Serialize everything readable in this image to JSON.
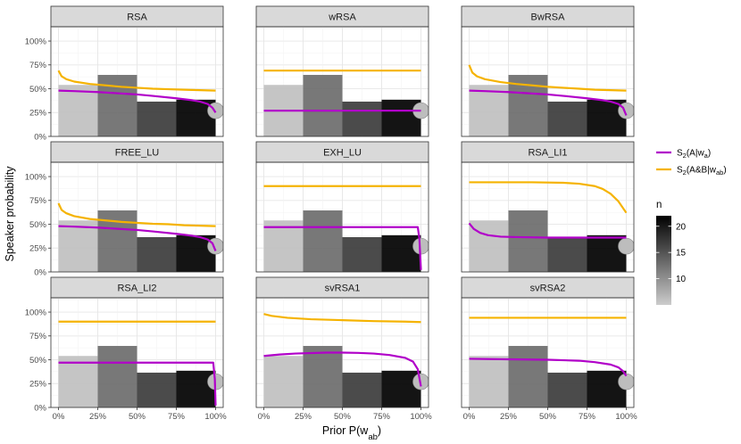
{
  "chart_data": {
    "type": "faceted-line-bar",
    "xlabel": "Prior P(w",
    "xlabel_sub": "ab",
    "xlabel_close": ")",
    "ylabel": "Speaker probability",
    "x_ticks": [
      "0%",
      "25%",
      "50%",
      "75%",
      "100%"
    ],
    "y_ticks": [
      "0%",
      "25%",
      "50%",
      "75%",
      "100%"
    ],
    "ylim": [
      0,
      1.15
    ],
    "xlim": [
      0,
      1
    ],
    "grid": true,
    "legend": {
      "placement": "right",
      "series": [
        {
          "label_main": "S",
          "label_sub": "2",
          "label_rest": "(A|w",
          "label_sub2": "a",
          "label_end": ")",
          "color": "#b100c9"
        },
        {
          "label_main": "S",
          "label_sub": "2",
          "label_rest": "(A&B|w",
          "label_sub2": "ab",
          "label_end": ")",
          "color": "#f5b300"
        }
      ],
      "n_title": "n",
      "n_ticks": [
        10,
        15,
        20
      ],
      "n_range": [
        5,
        22
      ]
    },
    "bars": {
      "bins": [
        [
          0,
          0.25
        ],
        [
          0.25,
          0.5
        ],
        [
          0.5,
          0.75
        ],
        [
          0.75,
          1.0
        ]
      ],
      "values": [
        0.54,
        0.645,
        0.365,
        0.385
      ],
      "n": [
        6,
        13,
        17,
        22
      ]
    },
    "end_point": {
      "x": 1.0,
      "y": 0.27,
      "color": "#bdbdbd"
    },
    "panels": [
      {
        "title": "RSA",
        "series": [
          {
            "name": "S2(A|wa)",
            "x": [
              0,
              0.1,
              0.25,
              0.4,
              0.5,
              0.6,
              0.75,
              0.85,
              0.9,
              0.95,
              0.98,
              1.0
            ],
            "y": [
              0.48,
              0.475,
              0.465,
              0.45,
              0.44,
              0.425,
              0.4,
              0.38,
              0.365,
              0.34,
              0.3,
              0.25
            ]
          },
          {
            "name": "S2(A&B|wab)",
            "x": [
              0,
              0.02,
              0.05,
              0.1,
              0.2,
              0.3,
              0.4,
              0.5,
              0.6,
              0.7,
              0.8,
              0.9,
              1.0
            ],
            "y": [
              0.69,
              0.63,
              0.6,
              0.575,
              0.55,
              0.535,
              0.52,
              0.51,
              0.5,
              0.495,
              0.49,
              0.485,
              0.48
            ]
          }
        ]
      },
      {
        "title": "wRSA",
        "series": [
          {
            "name": "S2(A|wa)",
            "x": [
              0,
              1.0
            ],
            "y": [
              0.27,
              0.27
            ]
          },
          {
            "name": "S2(A&B|wab)",
            "x": [
              0,
              1.0
            ],
            "y": [
              0.69,
              0.69
            ]
          }
        ]
      },
      {
        "title": "BwRSA",
        "series": [
          {
            "name": "S2(A|wa)",
            "x": [
              0,
              0.1,
              0.25,
              0.4,
              0.5,
              0.6,
              0.75,
              0.85,
              0.9,
              0.95,
              0.98,
              1.0
            ],
            "y": [
              0.48,
              0.475,
              0.465,
              0.45,
              0.44,
              0.425,
              0.4,
              0.38,
              0.365,
              0.34,
              0.3,
              0.22
            ]
          },
          {
            "name": "S2(A&B|wab)",
            "x": [
              0,
              0.02,
              0.05,
              0.1,
              0.2,
              0.3,
              0.4,
              0.5,
              0.6,
              0.7,
              0.8,
              0.9,
              1.0
            ],
            "y": [
              0.75,
              0.67,
              0.63,
              0.6,
              0.57,
              0.55,
              0.535,
              0.52,
              0.51,
              0.5,
              0.49,
              0.485,
              0.48
            ]
          }
        ]
      },
      {
        "title": "FREE_LU",
        "series": [
          {
            "name": "S2(A|wa)",
            "x": [
              0,
              0.1,
              0.25,
              0.4,
              0.5,
              0.6,
              0.75,
              0.85,
              0.9,
              0.95,
              0.98,
              1.0
            ],
            "y": [
              0.48,
              0.475,
              0.465,
              0.45,
              0.44,
              0.425,
              0.4,
              0.38,
              0.365,
              0.34,
              0.3,
              0.22
            ]
          },
          {
            "name": "S2(A&B|wab)",
            "x": [
              0,
              0.02,
              0.05,
              0.1,
              0.2,
              0.3,
              0.4,
              0.5,
              0.6,
              0.7,
              0.8,
              0.9,
              1.0
            ],
            "y": [
              0.72,
              0.65,
              0.615,
              0.585,
              0.555,
              0.54,
              0.525,
              0.515,
              0.505,
              0.5,
              0.49,
              0.485,
              0.48
            ]
          }
        ]
      },
      {
        "title": "EXH_LU",
        "series": [
          {
            "name": "S2(A|wa)",
            "x": [
              0,
              0.98,
              0.99,
              1.0
            ],
            "y": [
              0.47,
              0.47,
              0.35,
              0.02
            ]
          },
          {
            "name": "S2(A&B|wab)",
            "x": [
              0,
              1.0
            ],
            "y": [
              0.9,
              0.9
            ]
          }
        ]
      },
      {
        "title": "RSA_LI1",
        "series": [
          {
            "name": "S2(A|wa)",
            "x": [
              0,
              0.03,
              0.07,
              0.12,
              0.2,
              0.3,
              0.5,
              1.0
            ],
            "y": [
              0.51,
              0.45,
              0.41,
              0.385,
              0.37,
              0.365,
              0.36,
              0.36
            ]
          },
          {
            "name": "S2(A&B|wab)",
            "x": [
              0,
              0.4,
              0.6,
              0.7,
              0.8,
              0.85,
              0.9,
              0.95,
              1.0
            ],
            "y": [
              0.94,
              0.94,
              0.935,
              0.925,
              0.9,
              0.87,
              0.82,
              0.74,
              0.62
            ]
          }
        ]
      },
      {
        "title": "RSA_LI2",
        "series": [
          {
            "name": "S2(A|wa)",
            "x": [
              0,
              0.985,
              0.995,
              1.0
            ],
            "y": [
              0.47,
              0.47,
              0.3,
              0.02
            ]
          },
          {
            "name": "S2(A&B|wab)",
            "x": [
              0,
              1.0
            ],
            "y": [
              0.9,
              0.9
            ]
          }
        ]
      },
      {
        "title": "svRSA1",
        "series": [
          {
            "name": "S2(A|wa)",
            "x": [
              0,
              0.1,
              0.2,
              0.3,
              0.4,
              0.5,
              0.6,
              0.7,
              0.8,
              0.9,
              0.95,
              0.98,
              1.0
            ],
            "y": [
              0.54,
              0.555,
              0.565,
              0.57,
              0.575,
              0.575,
              0.572,
              0.565,
              0.55,
              0.52,
              0.48,
              0.4,
              0.22
            ]
          },
          {
            "name": "S2(A&B|wab)",
            "x": [
              0,
              0.05,
              0.15,
              0.3,
              0.5,
              0.7,
              0.9,
              1.0
            ],
            "y": [
              0.98,
              0.96,
              0.94,
              0.925,
              0.915,
              0.905,
              0.9,
              0.895
            ]
          }
        ]
      },
      {
        "title": "svRSA2",
        "series": [
          {
            "name": "S2(A|wa)",
            "x": [
              0,
              0.25,
              0.5,
              0.7,
              0.8,
              0.9,
              0.95,
              0.98,
              1.0
            ],
            "y": [
              0.51,
              0.505,
              0.5,
              0.49,
              0.475,
              0.45,
              0.42,
              0.38,
              0.33
            ]
          },
          {
            "name": "S2(A&B|wab)",
            "x": [
              0,
              1.0
            ],
            "y": [
              0.94,
              0.94
            ]
          }
        ]
      }
    ]
  }
}
